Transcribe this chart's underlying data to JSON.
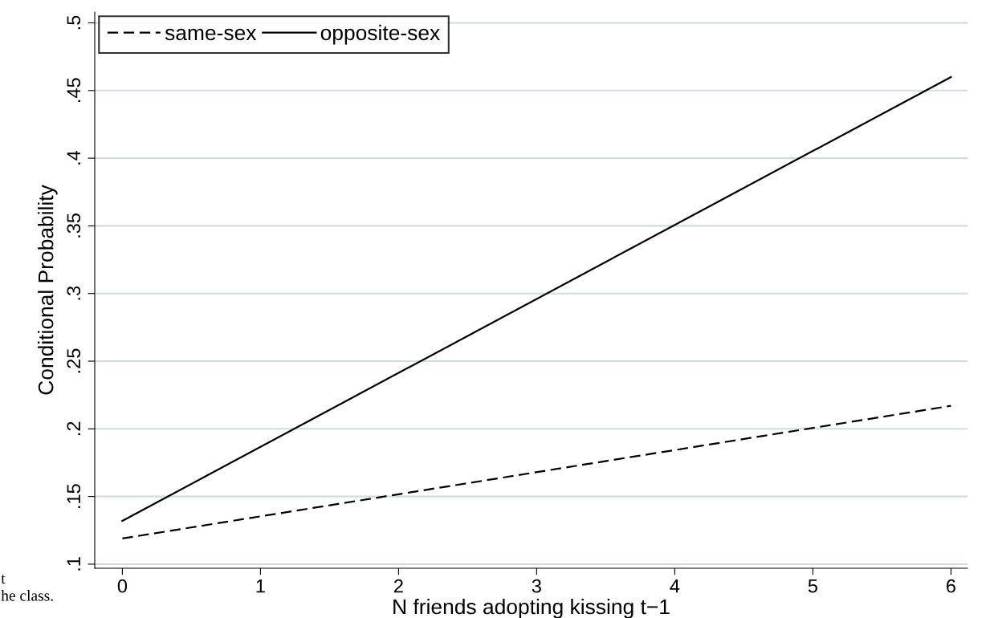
{
  "chart_data": {
    "type": "line",
    "xlabel": "N friends adopting kissing t−1",
    "ylabel": "Conditional Probability",
    "series": [
      {
        "name": "same-sex",
        "color": "#000000",
        "line_style": "dashed",
        "values": [
          0.119,
          0.217
        ]
      },
      {
        "name": "opposite-sex",
        "color": "#000000",
        "line_style": "solid",
        "values": [
          0.132,
          0.46
        ]
      }
    ],
    "x": [
      0,
      6
    ],
    "xlim": [
      -0.2,
      6.12
    ],
    "xticks": [
      0,
      1,
      2,
      3,
      4,
      5,
      6
    ],
    "ylim": [
      0.097,
      0.508
    ],
    "yticks": [
      {
        "value": 0.1,
        "label": ".1"
      },
      {
        "value": 0.15,
        "label": ".15"
      },
      {
        "value": 0.2,
        "label": ".2"
      },
      {
        "value": 0.25,
        "label": ".25"
      },
      {
        "value": 0.3,
        "label": ".3"
      },
      {
        "value": 0.35,
        "label": ".35"
      },
      {
        "value": 0.4,
        "label": ".4"
      },
      {
        "value": 0.45,
        "label": ".45"
      },
      {
        "value": 0.5,
        "label": ".5"
      }
    ],
    "grid": "y",
    "legend": "top left",
    "marker": "none",
    "annotations": [
      "t",
      "he class."
    ]
  }
}
